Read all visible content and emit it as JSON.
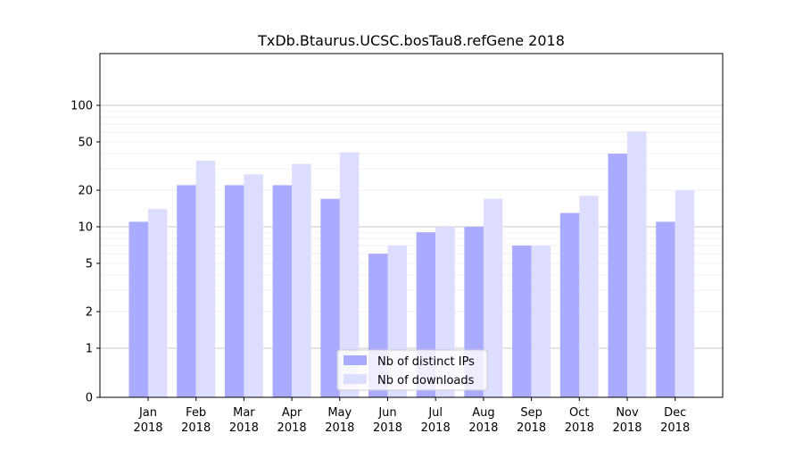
{
  "chart_data": {
    "type": "bar",
    "title": "TxDb.Btaurus.UCSC.bosTau8.refGene 2018",
    "xlabel": "",
    "ylabel": "",
    "yscale": "symlog",
    "ylim": [
      0,
      120
    ],
    "yticks": [
      0,
      1,
      2,
      5,
      10,
      20,
      50,
      100
    ],
    "categories": [
      [
        "Jan",
        "2018"
      ],
      [
        "Feb",
        "2018"
      ],
      [
        "Mar",
        "2018"
      ],
      [
        "Apr",
        "2018"
      ],
      [
        "May",
        "2018"
      ],
      [
        "Jun",
        "2018"
      ],
      [
        "Jul",
        "2018"
      ],
      [
        "Aug",
        "2018"
      ],
      [
        "Sep",
        "2018"
      ],
      [
        "Oct",
        "2018"
      ],
      [
        "Nov",
        "2018"
      ],
      [
        "Dec",
        "2018"
      ]
    ],
    "series": [
      {
        "name": "Nb of distinct IPs",
        "color": "#aaaaff",
        "values": [
          11,
          22,
          22,
          22,
          17,
          6,
          9,
          10,
          7,
          13,
          40,
          11
        ]
      },
      {
        "name": "Nb of downloads",
        "color": "#ddddff",
        "values": [
          14,
          35,
          27,
          33,
          41,
          7,
          10,
          17,
          7,
          18,
          61,
          20
        ]
      }
    ],
    "grid": true,
    "legend": "bottom-center"
  }
}
